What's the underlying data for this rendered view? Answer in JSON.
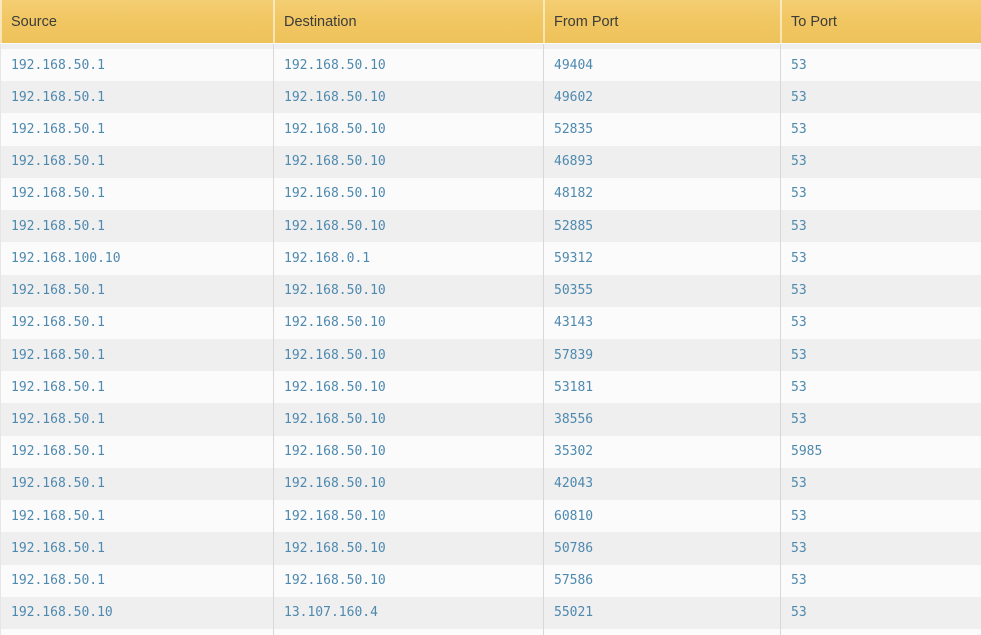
{
  "table": {
    "columns": [
      {
        "key": "source",
        "label": "Source"
      },
      {
        "key": "destination",
        "label": "Destination"
      },
      {
        "key": "from_port",
        "label": "From Port"
      },
      {
        "key": "to_port",
        "label": "To Port"
      }
    ],
    "rows": [
      [
        "192.168.50.1",
        "192.168.50.10",
        "49404",
        "53"
      ],
      [
        "192.168.50.1",
        "192.168.50.10",
        "49602",
        "53"
      ],
      [
        "192.168.50.1",
        "192.168.50.10",
        "52835",
        "53"
      ],
      [
        "192.168.50.1",
        "192.168.50.10",
        "46893",
        "53"
      ],
      [
        "192.168.50.1",
        "192.168.50.10",
        "48182",
        "53"
      ],
      [
        "192.168.50.1",
        "192.168.50.10",
        "52885",
        "53"
      ],
      [
        "192.168.100.10",
        "192.168.0.1",
        "59312",
        "53"
      ],
      [
        "192.168.50.1",
        "192.168.50.10",
        "50355",
        "53"
      ],
      [
        "192.168.50.1",
        "192.168.50.10",
        "43143",
        "53"
      ],
      [
        "192.168.50.1",
        "192.168.50.10",
        "57839",
        "53"
      ],
      [
        "192.168.50.1",
        "192.168.50.10",
        "53181",
        "53"
      ],
      [
        "192.168.50.1",
        "192.168.50.10",
        "38556",
        "53"
      ],
      [
        "192.168.50.1",
        "192.168.50.10",
        "35302",
        "5985"
      ],
      [
        "192.168.50.1",
        "192.168.50.10",
        "42043",
        "53"
      ],
      [
        "192.168.50.1",
        "192.168.50.10",
        "60810",
        "53"
      ],
      [
        "192.168.50.1",
        "192.168.50.10",
        "50786",
        "53"
      ],
      [
        "192.168.50.1",
        "192.168.50.10",
        "57586",
        "53"
      ],
      [
        "192.168.50.10",
        "13.107.160.4",
        "55021",
        "53"
      ]
    ]
  },
  "colors": {
    "header_bg": "#f1c763",
    "header_text": "#3c3c3c",
    "row_even_bg": "#fbfbfb",
    "row_odd_bg": "#efefef",
    "cell_text": "#4e89af",
    "separator": "#d8d8d8"
  }
}
